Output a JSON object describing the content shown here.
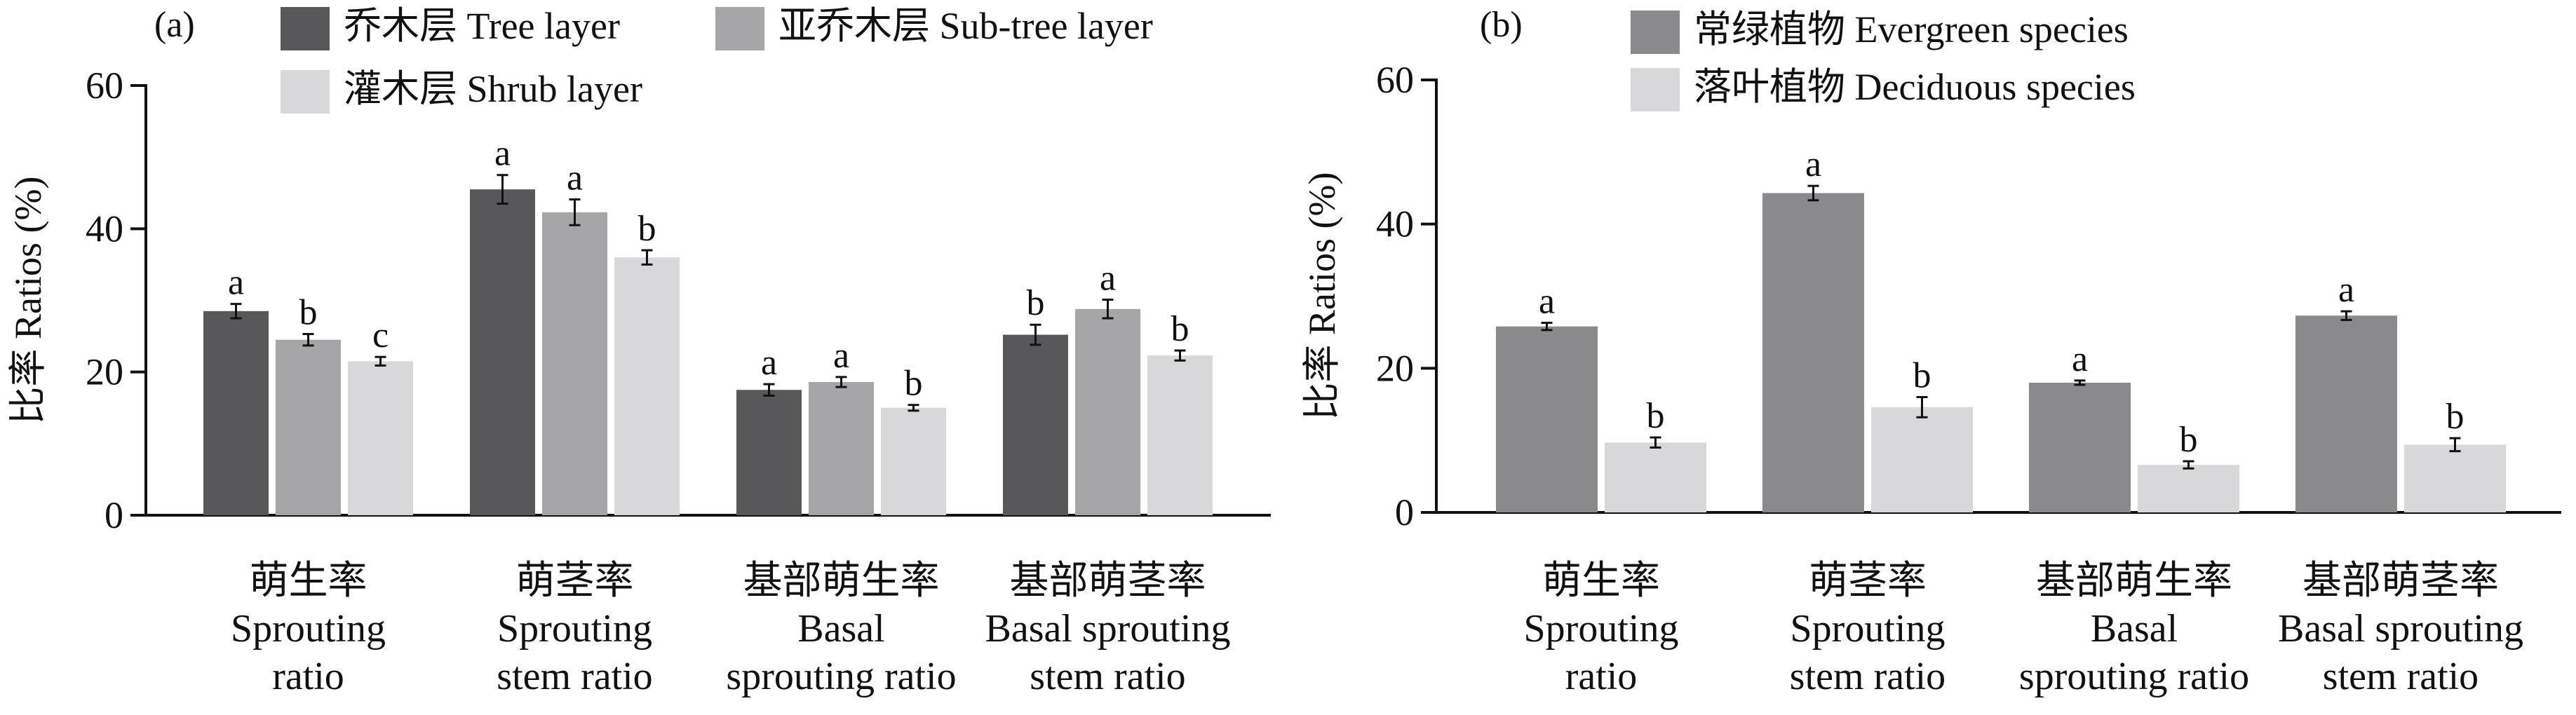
{
  "chart_data": [
    {
      "type": "bar",
      "panel_label": "(a)",
      "ylabel": "比率 Ratios (%)",
      "ylim": [
        0,
        60
      ],
      "yticks": [
        0,
        20,
        40,
        60
      ],
      "categories": [
        [
          "萌生率",
          "Sprouting",
          "ratio"
        ],
        [
          "萌茎率",
          "Sprouting",
          "stem ratio"
        ],
        [
          "基部萌生率",
          "Basal",
          "sprouting ratio"
        ],
        [
          "基部萌茎率",
          "Basal sprouting",
          "stem ratio"
        ]
      ],
      "series": [
        {
          "name": "乔木层 Tree layer",
          "color": "#58585a",
          "values": [
            28.5,
            45.5,
            17.5,
            25.2
          ],
          "errors": [
            1.0,
            2.0,
            0.8,
            1.4
          ],
          "letters": [
            "a",
            "a",
            "a",
            "b"
          ]
        },
        {
          "name": "亚乔木层  Sub-tree layer",
          "color": "#a6a6a9",
          "values": [
            24.5,
            42.3,
            18.6,
            28.8
          ],
          "errors": [
            0.8,
            1.8,
            0.7,
            1.3
          ],
          "letters": [
            "b",
            "a",
            "a",
            "a"
          ]
        },
        {
          "name": "灌木层 Shrub layer",
          "color": "#d8d8da",
          "values": [
            21.5,
            36.0,
            15.0,
            22.3
          ],
          "errors": [
            0.6,
            1.0,
            0.4,
            0.7
          ],
          "letters": [
            "c",
            "b",
            "b",
            "b"
          ]
        }
      ],
      "legend_position": "top"
    },
    {
      "type": "bar",
      "panel_label": "(b)",
      "ylabel": "比率 Ratios (%)",
      "ylim": [
        0,
        60
      ],
      "yticks": [
        0,
        20,
        40,
        60
      ],
      "categories": [
        [
          "萌生率",
          "Sprouting",
          "ratio"
        ],
        [
          "萌茎率",
          "Sprouting",
          "stem ratio"
        ],
        [
          "基部萌生率",
          "Basal",
          "sprouting ratio"
        ],
        [
          "基部萌茎率",
          "Basal sprouting",
          "stem ratio"
        ]
      ],
      "series": [
        {
          "name": "常绿植物 Evergreen species",
          "color": "#8a8a8d",
          "values": [
            25.8,
            44.3,
            18.0,
            27.3
          ],
          "errors": [
            0.5,
            1.0,
            0.3,
            0.6
          ],
          "letters": [
            "a",
            "a",
            "a",
            "a"
          ]
        },
        {
          "name": "落叶植物 Deciduous species",
          "color": "#d8d8da",
          "values": [
            9.7,
            14.6,
            6.6,
            9.4
          ],
          "errors": [
            0.7,
            1.4,
            0.5,
            0.9
          ],
          "letters": [
            "b",
            "b",
            "b",
            "b"
          ]
        }
      ],
      "legend_position": "top"
    }
  ]
}
